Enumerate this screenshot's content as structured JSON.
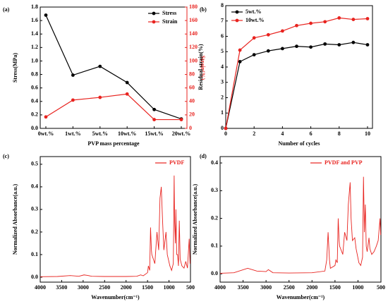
{
  "chart_data": [
    {
      "type": "line",
      "panel": "(a)",
      "marker": "o",
      "legend": "upper right",
      "xlabel": "PVP mass percentage",
      "ylabel": "Stress(MPa)",
      "y2label": "Strain(%)",
      "categories": [
        "0wt.%",
        "1wt.%",
        "5wt.%",
        "10wt.%",
        "15wt.%",
        "20wt.%"
      ],
      "series": [
        {
          "name": "Stress",
          "color": "#000000",
          "values": [
            1.68,
            0.79,
            0.92,
            0.68,
            0.28,
            0.14
          ]
        },
        {
          "name": "Strain",
          "color": "#e8231f",
          "axis": "y2",
          "values": [
            17,
            42,
            46,
            51,
            13,
            13
          ]
        }
      ],
      "ylim": [
        0,
        1.8
      ],
      "yticks": [
        {
          "value": 0,
          "label": "0.0"
        },
        0.2,
        0.4,
        0.6,
        0.8,
        {
          "value": 1,
          "label": "1.0"
        },
        1.2,
        1.4,
        1.6,
        1.8
      ],
      "y2lim": [
        0,
        180
      ],
      "y2ticks": [
        0,
        20,
        40,
        60,
        80,
        100,
        120,
        140,
        160,
        180
      ]
    },
    {
      "type": "line",
      "panel": "(b)",
      "marker": "o",
      "legend": "upper left",
      "xlabel": "Number of cycles",
      "ylabel": "Residual strain(%)",
      "x": [
        0,
        1,
        2,
        3,
        4,
        5,
        6,
        7,
        8,
        9,
        10
      ],
      "series": [
        {
          "name": "5wt.%",
          "color": "#000000",
          "values": [
            0,
            4.35,
            4.8,
            5.05,
            5.2,
            5.35,
            5.3,
            5.5,
            5.45,
            5.6,
            5.45
          ]
        },
        {
          "name": "10wt.%",
          "color": "#e8231f",
          "values": [
            0,
            5.1,
            5.9,
            6.1,
            6.35,
            6.7,
            6.85,
            6.95,
            7.2,
            7.1,
            7.15
          ]
        }
      ],
      "xlim": [
        0,
        10.35
      ],
      "xticks": [
        0,
        2,
        4,
        6,
        8,
        10
      ],
      "ylim": [
        0,
        8
      ],
      "yticks": [
        0,
        1,
        2,
        3,
        4,
        5,
        6,
        7,
        8
      ]
    },
    {
      "type": "line",
      "panel": "(c)",
      "legend": "upper right",
      "xlabel": "Wavenumber(cm⁻¹)",
      "ylabel": "Normalized Absorbance(a.u.)",
      "x": [
        4000,
        3600,
        3300,
        3100,
        2980,
        2900,
        2800,
        2500,
        2000,
        1750,
        1660,
        1600,
        1500,
        1480,
        1450,
        1430,
        1410,
        1400,
        1330,
        1280,
        1240,
        1210,
        1180,
        1160,
        1150,
        1120,
        1070,
        1040,
        980,
        940,
        900,
        880,
        870,
        850,
        840,
        820,
        800,
        780,
        760,
        740,
        700,
        650,
        610,
        570,
        530,
        510
      ],
      "series": [
        {
          "name": "PVDF",
          "color": "#e8231f",
          "values": [
            0.002,
            0.003,
            0.007,
            0.004,
            0.01,
            0.008,
            0.004,
            0.003,
            0.003,
            0.004,
            0.01,
            0.006,
            0.02,
            0.05,
            0.03,
            0.22,
            0.12,
            0.1,
            0.06,
            0.2,
            0.12,
            0.35,
            0.4,
            0.3,
            0.25,
            0.12,
            0.2,
            0.1,
            0.05,
            0.03,
            0.06,
            0.45,
            0.25,
            0.15,
            0.3,
            0.1,
            0.1,
            0.05,
            0.25,
            0.08,
            0.05,
            0.04,
            0.07,
            0.04,
            0.17,
            0.06
          ]
        }
      ],
      "xlim": [
        4000,
        500
      ],
      "xticks": [
        4000,
        3500,
        3000,
        2500,
        2000,
        1500,
        1000,
        500
      ],
      "ylim": [
        -0.022,
        0.534
      ],
      "yticks": [
        {
          "value": 0,
          "label": "0.0"
        },
        0.1,
        0.2,
        0.3,
        0.4,
        0.5
      ]
    },
    {
      "type": "line",
      "panel": "(d)",
      "legend": "upper right",
      "xlabel": "Wavenumber(cm⁻¹)",
      "ylabel": "Normalized Absorbance(a.u.)",
      "x": [
        4000,
        3700,
        3400,
        3200,
        3000,
        2950,
        2850,
        2500,
        2000,
        1720,
        1680,
        1650,
        1620,
        1600,
        1500,
        1480,
        1450,
        1430,
        1410,
        1400,
        1330,
        1290,
        1240,
        1210,
        1170,
        1150,
        1120,
        1070,
        1040,
        980,
        940,
        900,
        880,
        860,
        840,
        820,
        800,
        760,
        740,
        700,
        650,
        600,
        560,
        520,
        505
      ],
      "series": [
        {
          "name": "PVDF and PVP",
          "color": "#e8231f",
          "values": [
            0.002,
            0.004,
            0.02,
            0.01,
            0.008,
            0.015,
            0.004,
            0.003,
            0.004,
            0.01,
            0.05,
            0.15,
            0.05,
            0.02,
            0.03,
            0.05,
            0.04,
            0.2,
            0.12,
            0.1,
            0.07,
            0.15,
            0.12,
            0.25,
            0.33,
            0.2,
            0.12,
            0.13,
            0.09,
            0.04,
            0.03,
            0.06,
            0.35,
            0.15,
            0.25,
            0.1,
            0.08,
            0.13,
            0.09,
            0.07,
            0.08,
            0.1,
            0.12,
            0.2,
            0.14
          ]
        }
      ],
      "xlim": [
        4000,
        500
      ],
      "xticks": [
        4000,
        3500,
        3000,
        2500,
        2000,
        1500,
        1000,
        500
      ],
      "ylim": [
        -0.03,
        0.423
      ],
      "yticks": [
        {
          "value": 0,
          "label": "0.0"
        },
        0.1,
        0.2,
        0.3,
        0.4
      ]
    }
  ]
}
